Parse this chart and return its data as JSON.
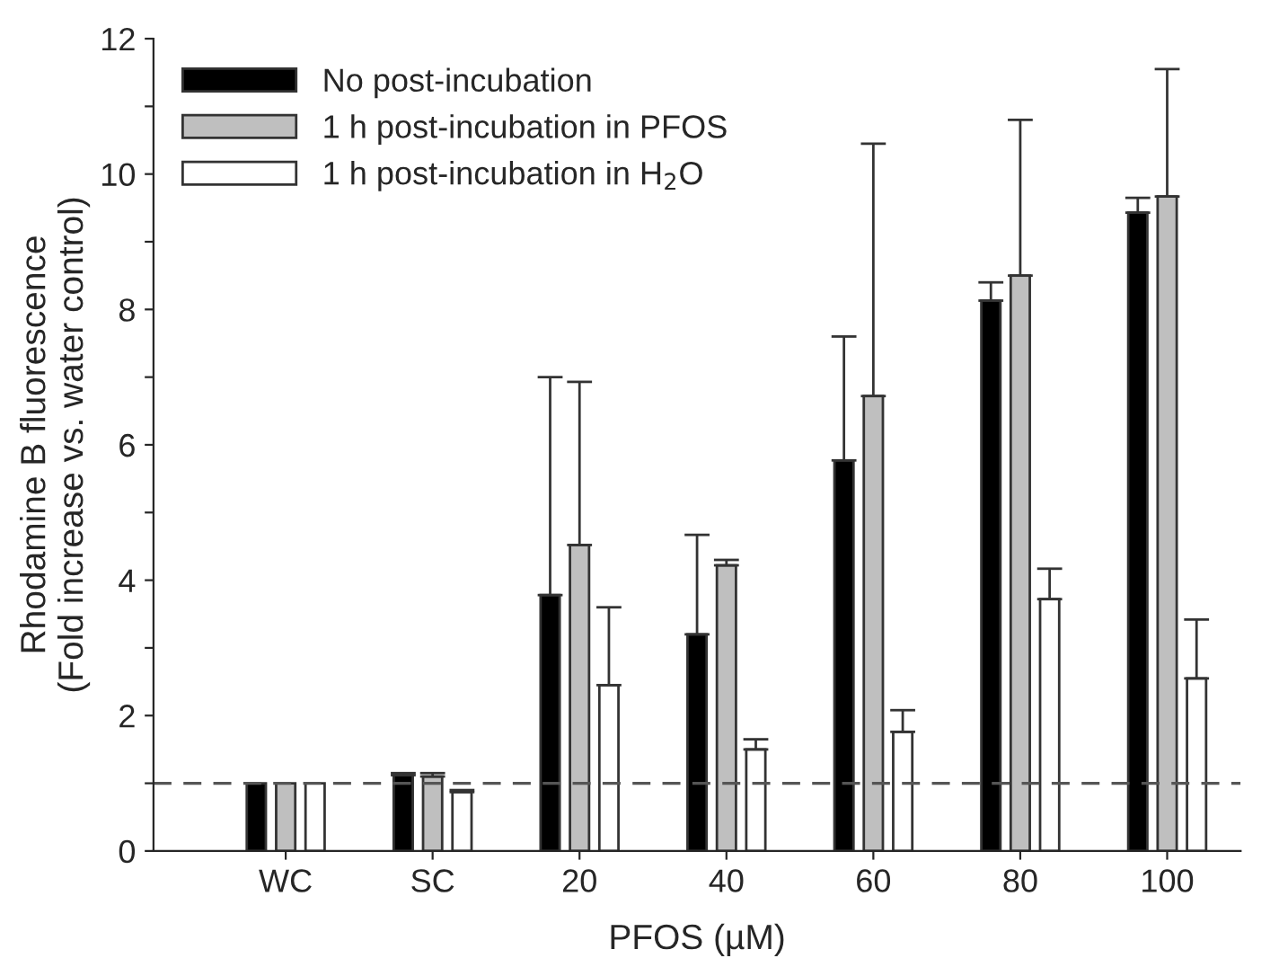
{
  "chart_data": {
    "type": "bar",
    "xlabel": "PFOS (µM)",
    "ylabel": "Rhodamine B fluorescence\n(Fold increase vs. water control)",
    "categories": [
      "WC",
      "SC",
      "20",
      "40",
      "60",
      "80",
      "100"
    ],
    "series": [
      {
        "name": "No post-incubation",
        "color": "#000000",
        "values": [
          1,
          1.12,
          3.78,
          3.2,
          5.77,
          8.13,
          9.43
        ],
        "errors": [
          null,
          [
            1.12,
            1.15
          ],
          [
            3.78,
            7.0
          ],
          [
            3.2,
            4.67
          ],
          [
            5.77,
            7.6
          ],
          [
            8.13,
            8.4
          ],
          [
            9.43,
            9.65
          ]
        ]
      },
      {
        "name": "1 h post-incubation in PFOS",
        "color": "#bfbfbf",
        "values": [
          1,
          1.1,
          4.52,
          4.22,
          6.72,
          8.5,
          9.67
        ],
        "errors": [
          null,
          [
            1.1,
            1.15
          ],
          [
            4.52,
            6.93
          ],
          [
            4.22,
            4.3
          ],
          [
            6.72,
            10.45
          ],
          [
            8.5,
            10.8
          ],
          [
            9.67,
            11.55
          ]
        ]
      },
      {
        "name": "1 h post-incubation in H$_{2}$O",
        "color": "#ffffff",
        "values": [
          1,
          0.87,
          2.45,
          1.5,
          1.76,
          3.72,
          2.55
        ],
        "errors": [
          null,
          [
            0.87,
            0.9
          ],
          [
            2.45,
            3.6
          ],
          [
            1.5,
            1.65
          ],
          [
            1.76,
            2.08
          ],
          [
            3.72,
            4.17
          ],
          [
            2.55,
            3.42
          ]
        ]
      }
    ],
    "ylim": [
      0,
      12
    ],
    "yticks": [
      0,
      {
        "value": 1,
        "label": null
      },
      2,
      {
        "value": 3,
        "label": null
      },
      4,
      {
        "value": 5,
        "label": null
      },
      6,
      {
        "value": 7,
        "label": null
      },
      8,
      {
        "value": 9,
        "label": null
      },
      10,
      {
        "value": 11,
        "label": null
      },
      12
    ],
    "ref_lines": [
      {
        "axis": "y",
        "value": 1,
        "color": "#555555",
        "line_style": "dashed"
      }
    ],
    "legend": "top left",
    "grid": false
  }
}
